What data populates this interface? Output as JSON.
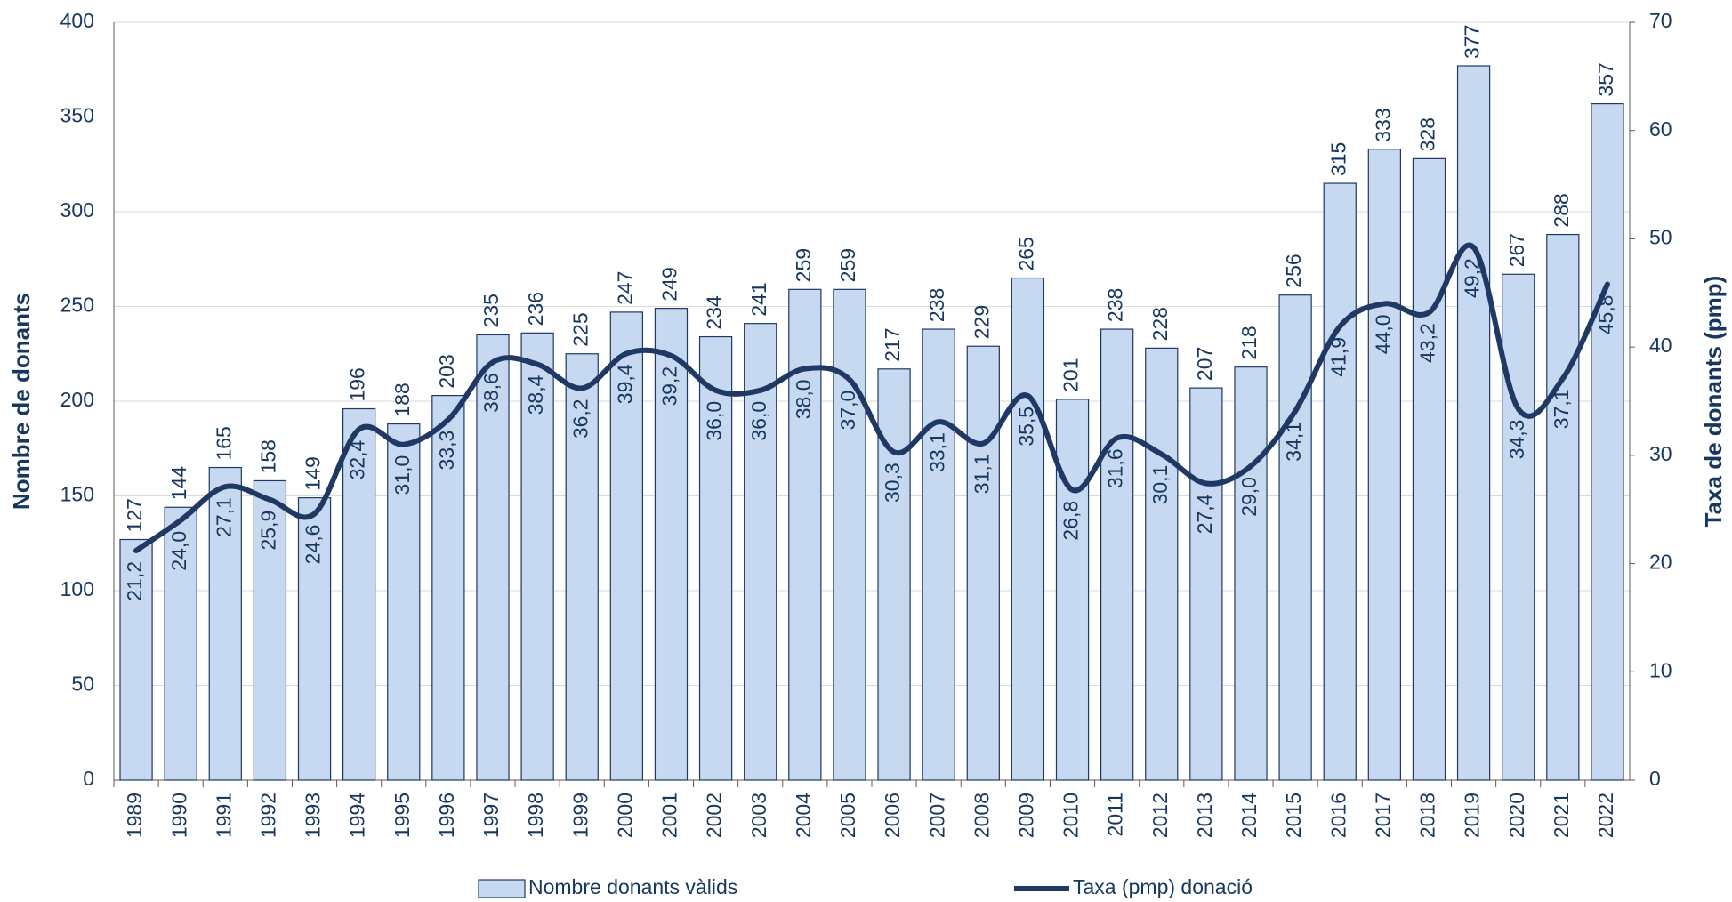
{
  "chart_data": {
    "type": "bar",
    "categories": [
      "1989",
      "1990",
      "1991",
      "1992",
      "1993",
      "1994",
      "1995",
      "1996",
      "1997",
      "1998",
      "1999",
      "2000",
      "2001",
      "2002",
      "2003",
      "2004",
      "2005",
      "2006",
      "2007",
      "2008",
      "2009",
      "2010",
      "2011",
      "2012",
      "2013",
      "2014",
      "2015",
      "2016",
      "2017",
      "2018",
      "2019",
      "2020",
      "2021",
      "2022"
    ],
    "series": [
      {
        "name": "Nombre donants vàlids",
        "type": "bar",
        "color": "#c6d9f1",
        "values": [
          127,
          144,
          165,
          158,
          149,
          196,
          188,
          203,
          235,
          236,
          225,
          247,
          249,
          234,
          241,
          259,
          259,
          217,
          238,
          229,
          265,
          201,
          238,
          228,
          207,
          218,
          256,
          315,
          333,
          328,
          377,
          267,
          288,
          357
        ]
      },
      {
        "name": "Taxa (pmp) donació",
        "type": "line",
        "axis": "y2",
        "color": "#1f3864",
        "values": [
          21.2,
          24.0,
          27.1,
          25.9,
          24.6,
          32.4,
          31.0,
          33.3,
          38.6,
          38.4,
          36.2,
          39.4,
          39.2,
          36.0,
          36.0,
          38.0,
          37.0,
          30.3,
          33.1,
          31.1,
          35.5,
          26.8,
          31.6,
          30.1,
          27.4,
          29.0,
          34.1,
          41.9,
          44.0,
          43.2,
          49.2,
          34.3,
          37.1,
          45.8
        ],
        "value_labels": [
          "21,2",
          "24,0",
          "27,1",
          "25,9",
          "24,6",
          "32,4",
          "31,0",
          "33,3",
          "38,6",
          "38,4",
          "36,2",
          "39,4",
          "39,2",
          "36,0",
          "36,0",
          "38,0",
          "37,0",
          "30,3",
          "33,1",
          "31,1",
          "35,5",
          "26,8",
          "31,6",
          "30,1",
          "27,4",
          "29,0",
          "34,1",
          "41,9",
          "44,0",
          "43,2",
          "49,2",
          "34,3",
          "37,1",
          "45,8"
        ]
      }
    ],
    "ylabel": "Nombre de donants",
    "y2label": "Taxa de donants (pmp)",
    "ylim": [
      0,
      400
    ],
    "yticks": [
      0,
      50,
      100,
      150,
      200,
      250,
      300,
      350,
      400
    ],
    "y2lim": [
      0,
      70
    ],
    "y2ticks": [
      0,
      10,
      20,
      30,
      40,
      50,
      60,
      70
    ],
    "grid": true,
    "legend": "bottom"
  }
}
